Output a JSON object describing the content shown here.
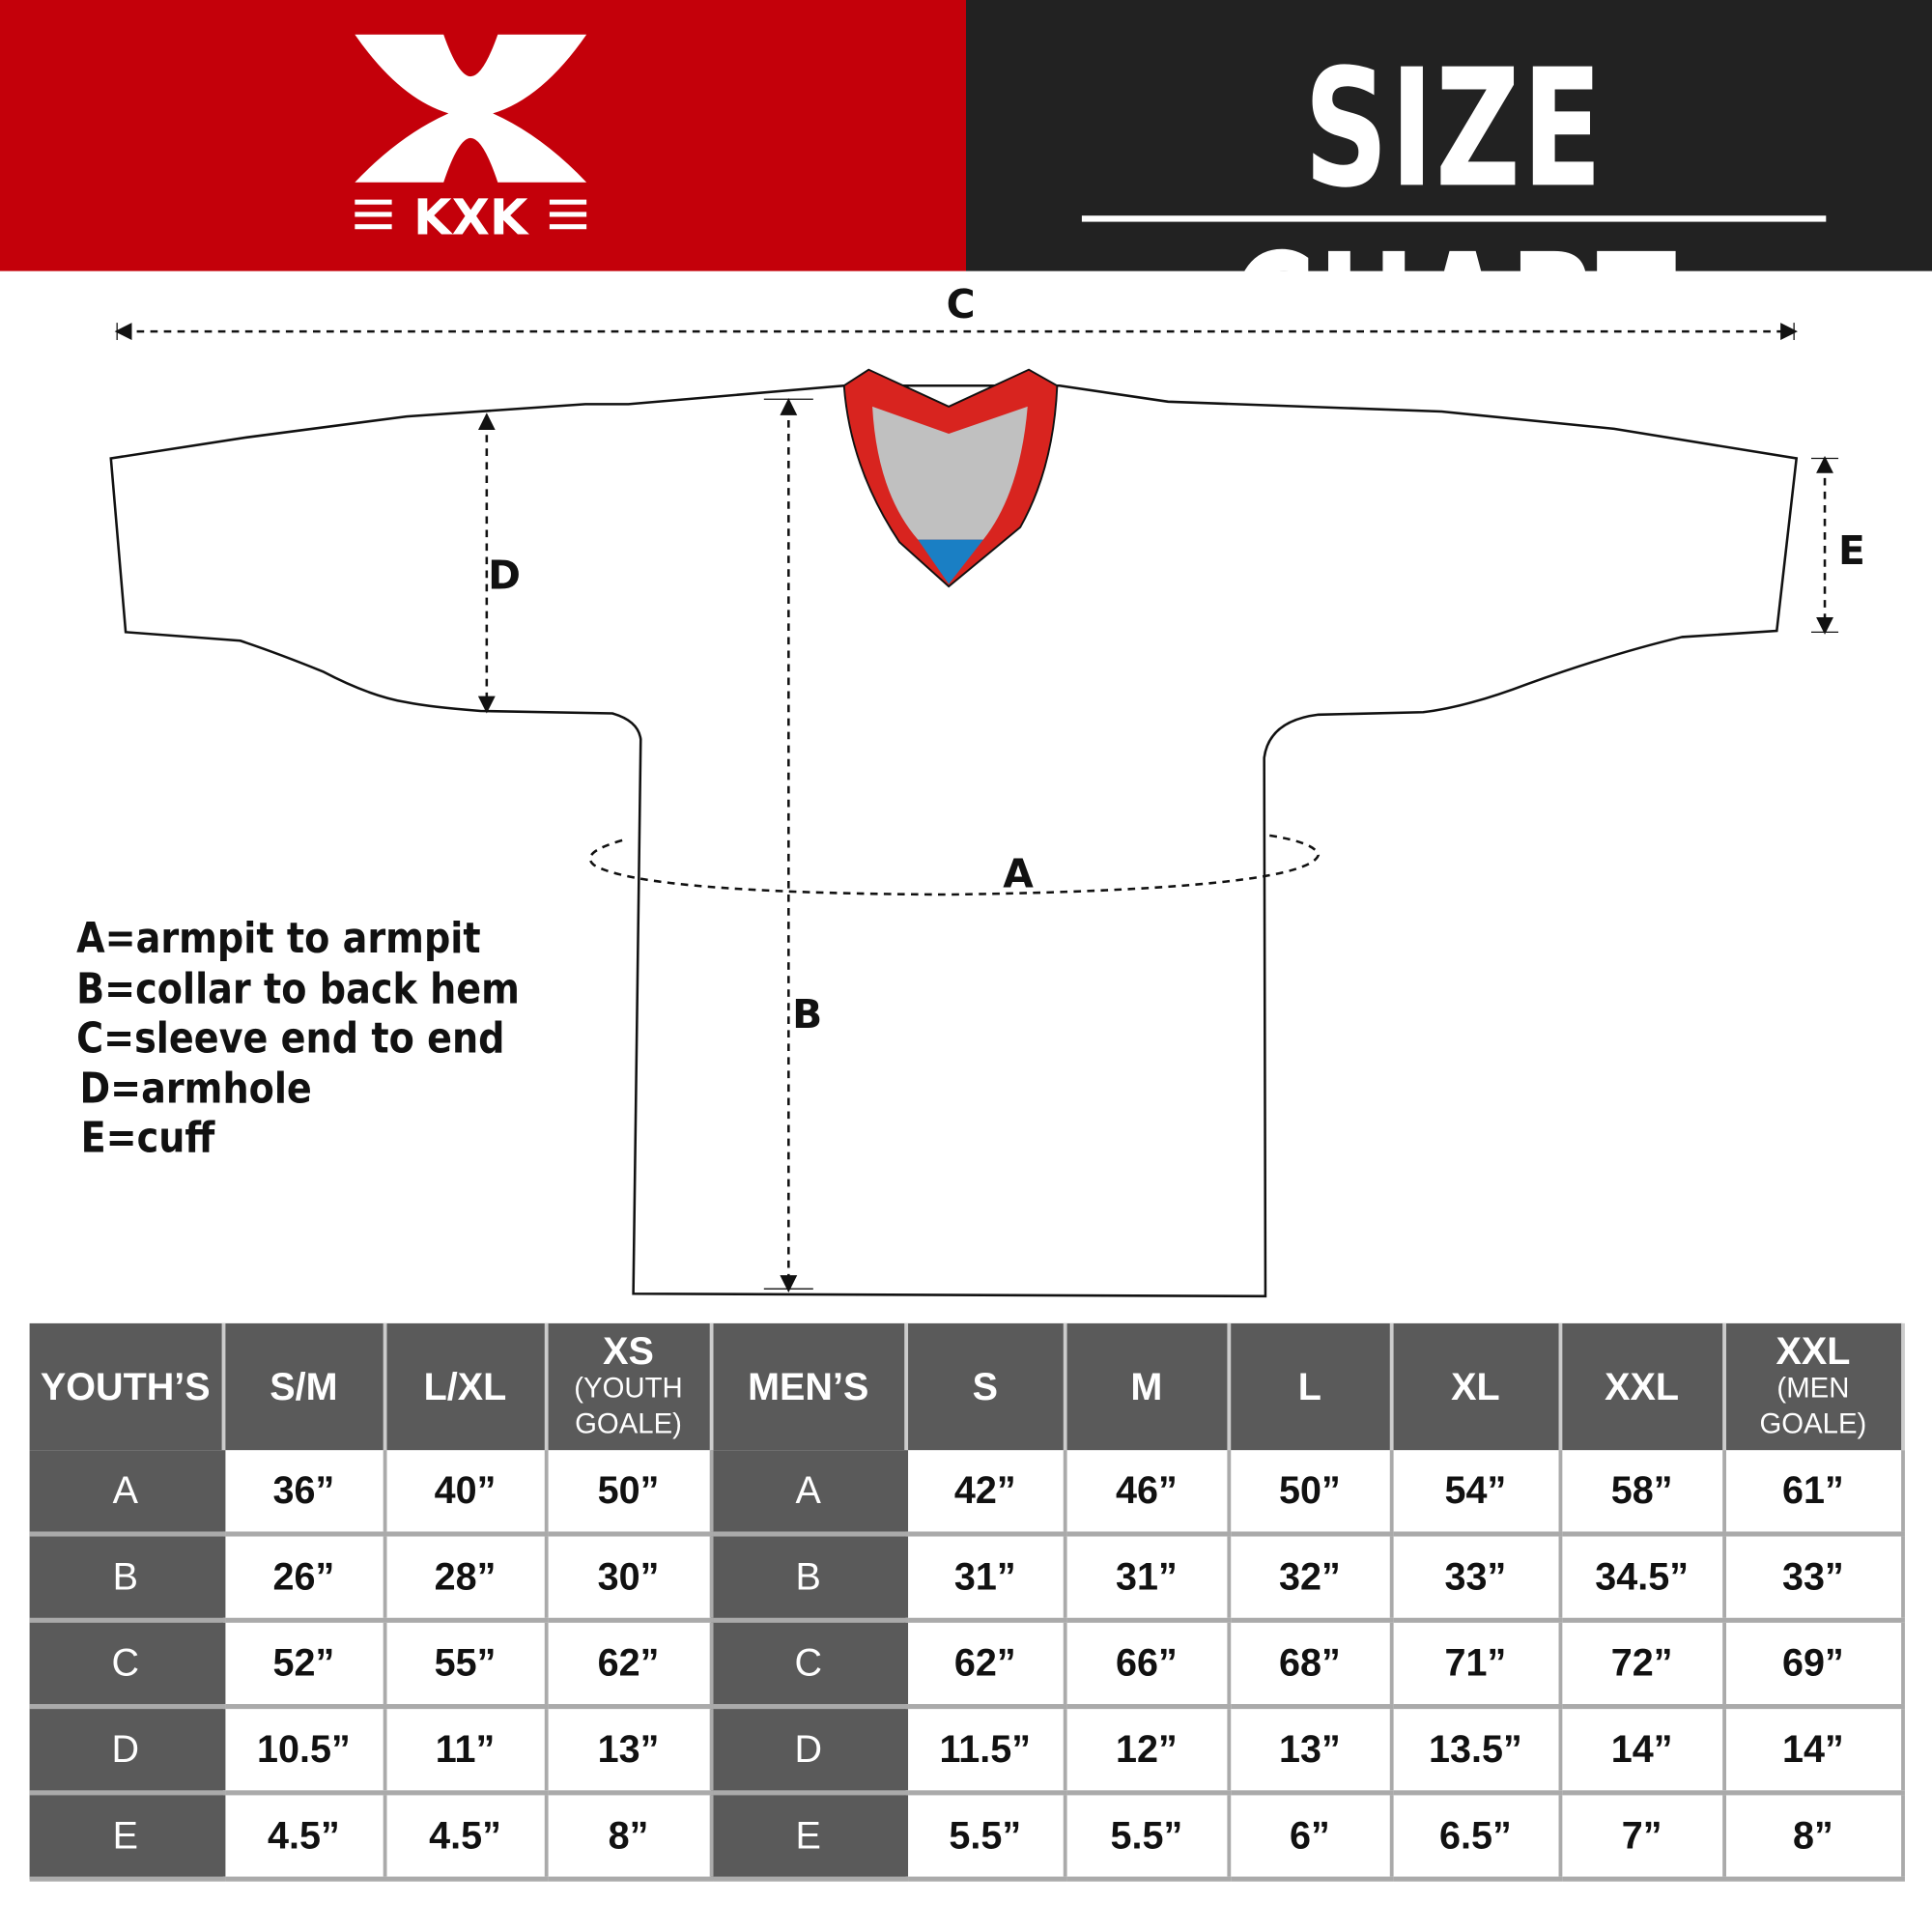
{
  "brand": {
    "name": "KXK",
    "color": "#c4000a"
  },
  "header": {
    "title": "SIZE CHART"
  },
  "diagram": {
    "labels": {
      "a": "A",
      "b": "B",
      "c": "C",
      "d": "D",
      "e": "E"
    },
    "collar_colors": {
      "trim": "#d8241f",
      "inner": "#c0c0c0",
      "tag": "#1a7fc4"
    }
  },
  "legend": [
    "A=armpit to armpit",
    "B=collar to back hem",
    "C=sleeve end to end",
    "D=armhole",
    "E=cuff"
  ],
  "table": {
    "youth_header": "YOUTH’S",
    "youth_sizes": [
      {
        "label": "S/M"
      },
      {
        "label": "L/XL"
      },
      {
        "label": "XS",
        "sub": "(YOUTH GOALE)"
      }
    ],
    "men_header": "MEN’S",
    "men_sizes": [
      {
        "label": "S"
      },
      {
        "label": "M"
      },
      {
        "label": "L"
      },
      {
        "label": "XL"
      },
      {
        "label": "XXL"
      },
      {
        "label": "XXL",
        "sub": "(MEN GOALE)"
      }
    ],
    "rows": [
      {
        "key": "A",
        "youth": [
          "36”",
          "40”",
          "50”"
        ],
        "men": [
          "42”",
          "46”",
          "50”",
          "54”",
          "58”",
          "61”"
        ]
      },
      {
        "key": "B",
        "youth": [
          "26”",
          "28”",
          "30”"
        ],
        "men": [
          "31”",
          "31”",
          "32”",
          "33”",
          "34.5”",
          "33”"
        ]
      },
      {
        "key": "C",
        "youth": [
          "52”",
          "55”",
          "62”"
        ],
        "men": [
          "62”",
          "66”",
          "68”",
          "71”",
          "72”",
          "69”"
        ]
      },
      {
        "key": "D",
        "youth": [
          "10.5”",
          "11”",
          "13”"
        ],
        "men": [
          "11.5”",
          "12”",
          "13”",
          "13.5”",
          "14”",
          "14”"
        ]
      },
      {
        "key": "E",
        "youth": [
          "4.5”",
          "4.5”",
          "8”"
        ],
        "men": [
          "5.5”",
          "5.5”",
          "6”",
          "6.5”",
          "7”",
          "8”"
        ]
      }
    ]
  }
}
